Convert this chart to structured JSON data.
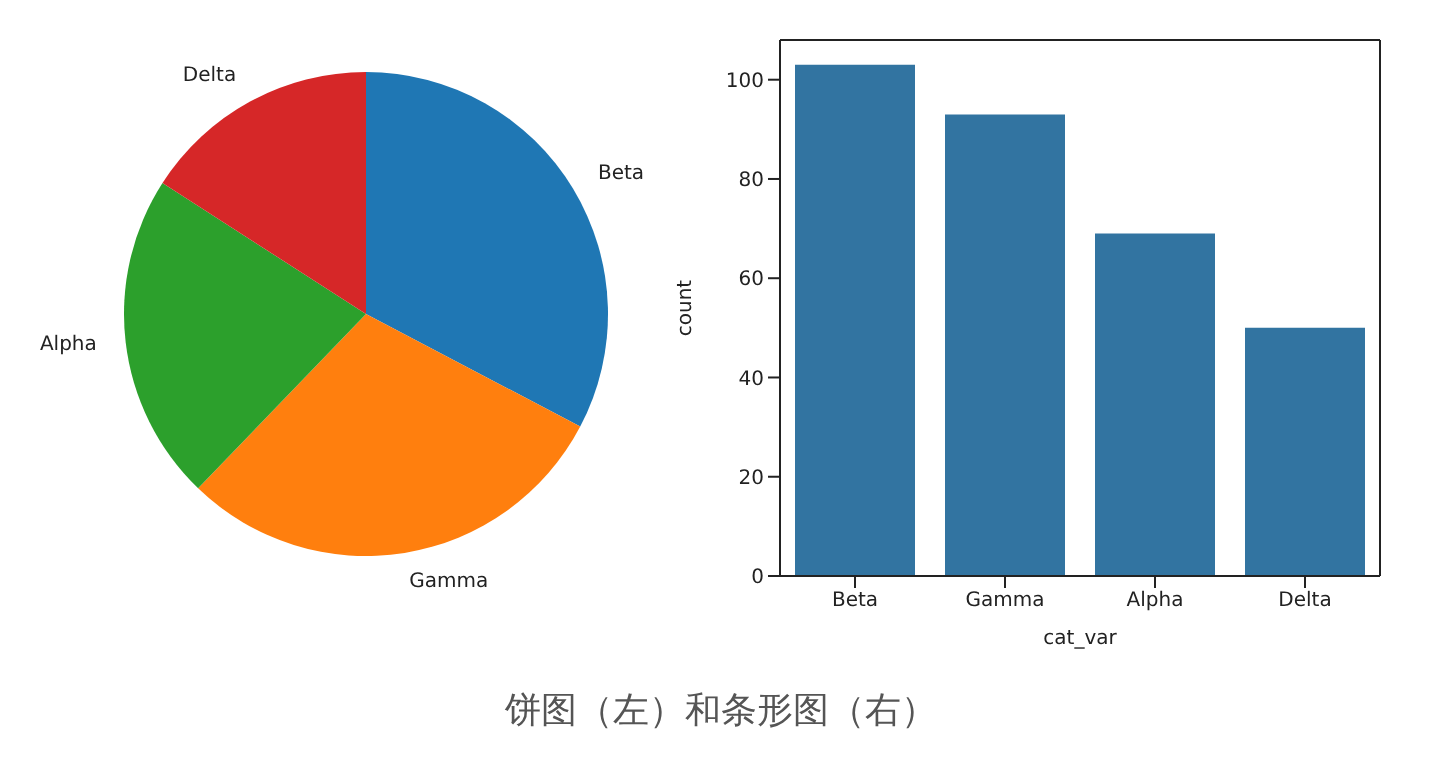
{
  "chart_data": [
    {
      "type": "pie",
      "categories": [
        "Beta",
        "Gamma",
        "Alpha",
        "Delta"
      ],
      "values": [
        32.7,
        29.5,
        21.9,
        15.9
      ],
      "colors": [
        "#1f77b4",
        "#ff7f0e",
        "#2ca02c",
        "#d62728"
      ],
      "annotations": [
        "饼图（左）和条形图（右）"
      ]
    },
    {
      "type": "bar",
      "categories": [
        "Beta",
        "Gamma",
        "Alpha",
        "Delta"
      ],
      "values": [
        103,
        93,
        69,
        50
      ],
      "color": "#3274a1",
      "xlabel": "cat_var",
      "ylabel": "count",
      "ylim": [
        0,
        108
      ],
      "yticks": [
        0,
        20,
        40,
        60,
        80,
        100
      ],
      "grid": false
    }
  ]
}
